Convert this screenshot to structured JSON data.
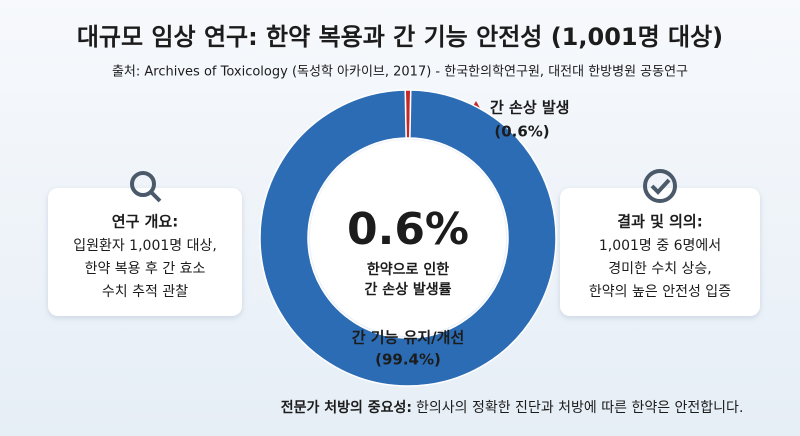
{
  "chart_data": {
    "type": "donut",
    "title": "대규모 임상 연구: 한약 복용과 간 기능 안전성 (1,001명 대상)",
    "subtitle": "출처: Archives of Toxicology (독성학 아카이브, 2017) - 한국한의학연구원, 대전대 한방병원 공동연구",
    "categories": [
      "간 손상 발생",
      "간 기능 유지/개선"
    ],
    "values": [
      0.6,
      99.4
    ],
    "value_labels": [
      "(0.6%)",
      "(99.4%)"
    ],
    "colors": [
      "#c62828",
      "#2b6cb5"
    ],
    "center_value": "0.6%",
    "center_caption": [
      "한약으로 인한",
      "간 손상 발생률"
    ],
    "left_box": {
      "heading": "연구 개요:",
      "lines": [
        "입원환자 1,001명 대상,",
        "한약 복용 후 간 효소",
        "수치 추적 관찰"
      ]
    },
    "right_box": {
      "heading": "결과 및 의의:",
      "lines": [
        "1,001명 중 6명에서",
        "경미한 수치 상승,",
        "한약의 높은 안전성 입증"
      ]
    },
    "footer": {
      "bold": "전문가 처방의 중요성:",
      "text": "한의사의 정확한 진단과 처방에 따른 한약은 안전합니다."
    }
  }
}
